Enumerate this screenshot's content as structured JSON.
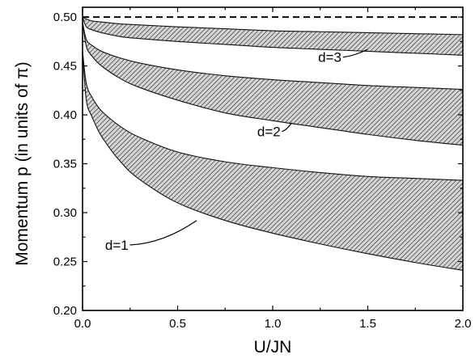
{
  "chart_data": {
    "type": "area",
    "xlabel": "U/JN",
    "ylabel": "Momentum p (in units of π)",
    "xlim": [
      0.0,
      2.0
    ],
    "ylim": [
      0.2,
      0.51
    ],
    "x_ticks": [
      "0.0",
      "0.5",
      "1.0",
      "1.5",
      "2.0"
    ],
    "y_ticks": [
      "0.20",
      "0.25",
      "0.30",
      "0.35",
      "0.40",
      "0.45",
      "0.50"
    ],
    "grid": false,
    "fill_pattern": "diagonal-hatch",
    "reference_line": {
      "y": 0.5,
      "style": "dashed"
    },
    "x": [
      0.0,
      0.02,
      0.05,
      0.1,
      0.2,
      0.3,
      0.5,
      0.75,
      1.0,
      1.25,
      1.5,
      1.75,
      2.0
    ],
    "bands": [
      {
        "label": "d=1",
        "upper": [
          0.465,
          0.432,
          0.418,
          0.404,
          0.388,
          0.377,
          0.362,
          0.352,
          0.346,
          0.341,
          0.337,
          0.335,
          0.333
        ],
        "lower": [
          0.465,
          0.415,
          0.398,
          0.378,
          0.352,
          0.334,
          0.31,
          0.292,
          0.279,
          0.268,
          0.258,
          0.249,
          0.241
        ]
      },
      {
        "label": "d=2",
        "upper": [
          0.495,
          0.477,
          0.471,
          0.465,
          0.458,
          0.453,
          0.446,
          0.44,
          0.436,
          0.433,
          0.43,
          0.428,
          0.426
        ],
        "lower": [
          0.495,
          0.47,
          0.46,
          0.45,
          0.437,
          0.428,
          0.415,
          0.402,
          0.394,
          0.387,
          0.38,
          0.374,
          0.369
        ]
      },
      {
        "label": "d=3",
        "upper": [
          0.5,
          0.498,
          0.496,
          0.495,
          0.493,
          0.492,
          0.49,
          0.488,
          0.486,
          0.485,
          0.484,
          0.483,
          0.482
        ],
        "lower": [
          0.5,
          0.49,
          0.487,
          0.484,
          0.48,
          0.478,
          0.475,
          0.472,
          0.469,
          0.467,
          0.465,
          0.463,
          0.461
        ]
      }
    ],
    "annotations": [
      {
        "text": "d=1",
        "target": [
          0.6,
          0.292
        ],
        "text_pos": [
          0.18,
          0.262
        ]
      },
      {
        "text": "d=2",
        "target": [
          1.1,
          0.392
        ],
        "text_pos": [
          0.98,
          0.378
        ]
      },
      {
        "text": "d=3",
        "target": [
          1.5,
          0.467
        ],
        "text_pos": [
          1.3,
          0.454
        ]
      }
    ]
  }
}
